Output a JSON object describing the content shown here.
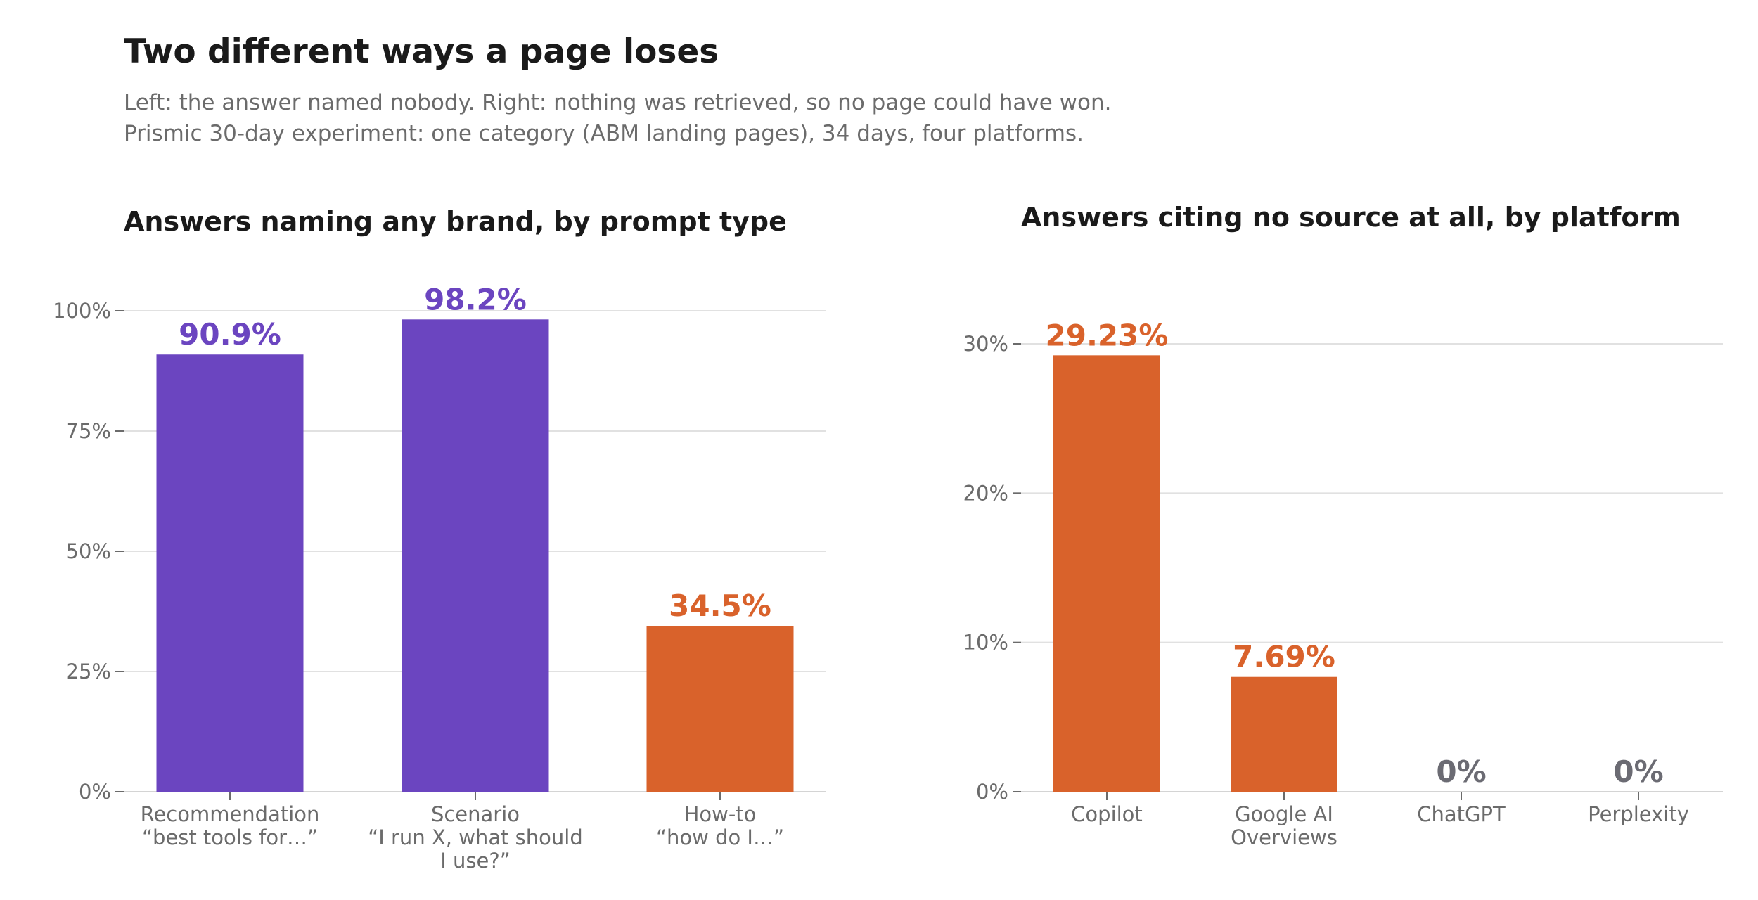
{
  "header": {
    "title": "Two different ways a page loses",
    "subtitle_line1": "Left: the answer named nobody. Right: nothing was retrieved, so no page could have won.",
    "subtitle_line2": "Prismic 30-day experiment: one category (ABM landing pages), 34 days, four platforms."
  },
  "colors": {
    "purple": "#6b45c0",
    "orange": "#d9622b",
    "muted": "#6b6b73"
  },
  "chart_data": [
    {
      "type": "bar",
      "title": "Answers naming any brand, by prompt type",
      "categories": [
        [
          "Recommendation",
          "“best tools for…”"
        ],
        [
          "Scenario",
          "“I run X, what should",
          "I use?”"
        ],
        [
          "How-to",
          "“how do I…”"
        ]
      ],
      "values": [
        90.9,
        98.2,
        34.5
      ],
      "value_labels": [
        "90.9%",
        "98.2%",
        "34.5%"
      ],
      "bar_colors": [
        "purple",
        "purple",
        "orange"
      ],
      "ylim": [
        0,
        100
      ],
      "yticks": [
        0,
        25,
        50,
        75,
        100
      ],
      "ytick_labels": [
        "0%",
        "25%",
        "50%",
        "75%",
        "100%"
      ],
      "grid": true
    },
    {
      "type": "bar",
      "title": "Answers citing no source at all, by platform",
      "categories": [
        [
          "Copilot"
        ],
        [
          "Google AI",
          "Overviews"
        ],
        [
          "ChatGPT"
        ],
        [
          "Perplexity"
        ]
      ],
      "values": [
        29.23,
        7.69,
        0,
        0
      ],
      "value_labels": [
        "29.23%",
        "7.69%",
        "0%",
        "0%"
      ],
      "bar_colors": [
        "orange",
        "orange",
        "muted",
        "muted"
      ],
      "ylim": [
        0,
        30
      ],
      "yticks": [
        0,
        10,
        20,
        30
      ],
      "ytick_labels": [
        "0%",
        "10%",
        "20%",
        "30%"
      ],
      "grid": true
    }
  ]
}
